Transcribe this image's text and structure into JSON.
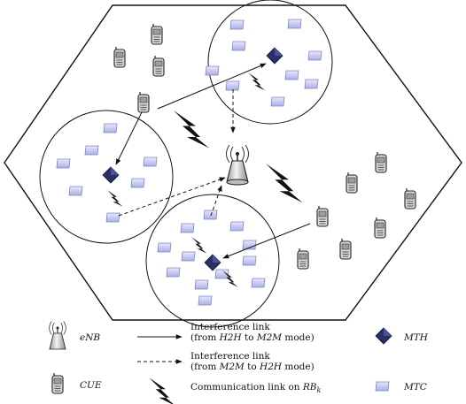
{
  "legend": {
    "enb_label": "eNB",
    "cue_label": "CUE",
    "mth_label": "MTH",
    "mtc_label": "MTC",
    "interference_h2h_line1": "Interference link",
    "interference_h2h_line2_pre": "(from ",
    "interference_h2h_line2_a": "H2H",
    "interference_h2h_line2_mid": " to ",
    "interference_h2h_line2_b": "M2M",
    "interference_h2h_line2_post": " mode)",
    "interference_m2m_line1": "Interference link",
    "interference_m2m_line2_pre": "(from ",
    "interference_m2m_line2_a": "M2M",
    "interference_m2m_line2_mid": " to ",
    "interference_m2m_line2_b": "H2H",
    "interference_m2m_line2_post": " mode)",
    "communication_text": "Communication link on ",
    "communication_rb": "RB",
    "communication_sub": "k"
  },
  "colors": {
    "mth": "#2a2f66",
    "mtc_fill": "#c9cdf2",
    "mtc_edge": "#7f86c4",
    "cue_fill": "#cfcfcf",
    "line": "#111111"
  },
  "icons": {
    "enb": "antenna-tower-icon",
    "cue": "mobile-phone-icon",
    "mth": "diamond-hub-icon",
    "mtc": "tablet-icon"
  }
}
